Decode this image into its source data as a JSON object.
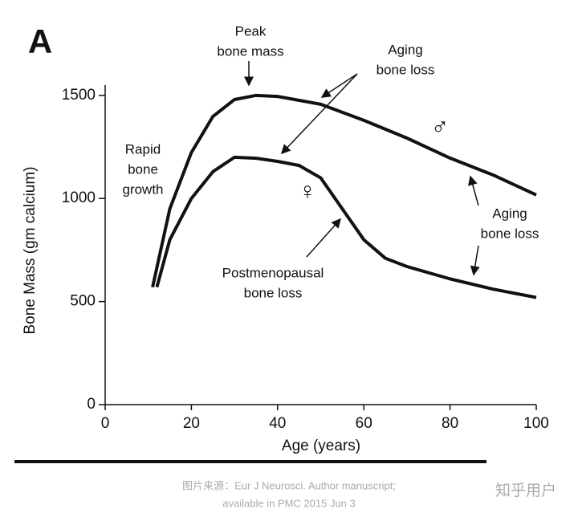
{
  "chart_data": {
    "type": "line",
    "panel": "A",
    "xlabel": "Age (years)",
    "ylabel": "Bone Mass (gm calcium)",
    "xlim": [
      0,
      100
    ],
    "ylim": [
      0,
      1550
    ],
    "xticks": [
      0,
      20,
      40,
      60,
      80,
      100
    ],
    "yticks": [
      0,
      500,
      1000,
      1500
    ],
    "series": [
      {
        "name": "♂",
        "color": "#111111",
        "x": [
          11,
          15,
          20,
          25,
          30,
          35,
          40,
          50,
          60,
          70,
          80,
          90,
          100
        ],
        "values": [
          570,
          950,
          1223,
          1398,
          1480,
          1500,
          1495,
          1457,
          1379,
          1293,
          1196,
          1114,
          1017
        ]
      },
      {
        "name": "♀",
        "color": "#111111",
        "x": [
          12,
          15,
          20,
          25,
          30,
          35,
          40,
          45,
          50,
          55,
          60,
          65,
          70,
          80,
          90,
          100
        ],
        "values": [
          570,
          800,
          1000,
          1130,
          1200,
          1195,
          1180,
          1160,
          1100,
          950,
          800,
          710,
          670,
          610,
          560,
          520
        ]
      }
    ],
    "annotations": [
      {
        "lines": [
          "Peak",
          "bone mass"
        ]
      },
      {
        "lines": [
          "Aging",
          "bone loss"
        ]
      },
      {
        "lines": [
          "Rapid",
          "bone",
          "growth"
        ]
      },
      {
        "lines": [
          "Postmenopausal",
          "bone loss"
        ]
      },
      {
        "lines": [
          "Aging",
          "bone loss"
        ]
      }
    ]
  },
  "caption": {
    "source": [
      "图片来源：Eur J Neurosci. Author manuscript;",
      "available in PMC 2015 Jun 3"
    ],
    "watermark": "知乎用户"
  }
}
